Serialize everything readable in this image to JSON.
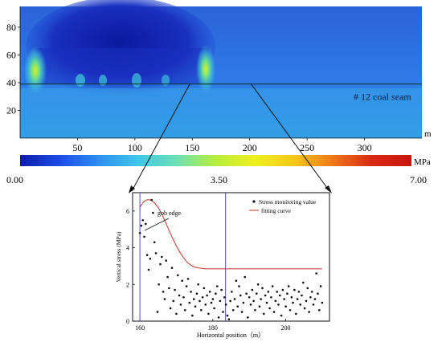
{
  "top_panel": {
    "seam_label": "# 12 coal seam",
    "x_unit": "m",
    "x_ticks": [
      "50",
      "100",
      "150",
      "200",
      "250",
      "300"
    ],
    "y_ticks": [
      "20",
      "40",
      "60",
      "80"
    ],
    "x_range": [
      0,
      350
    ],
    "y_range": [
      0,
      95
    ],
    "seam_elevation": 39
  },
  "colorbar": {
    "unit": "MPa",
    "min_label": "0.00",
    "mid_label": "3.50",
    "max_label": "7.00",
    "colors": [
      "#0a1ea8",
      "#1e4be8",
      "#2d8ef0",
      "#3fc6e8",
      "#6fe0b4",
      "#b4ee3c",
      "#f0f01e",
      "#f5c81a",
      "#f07818",
      "#d82814",
      "#c81410"
    ]
  },
  "chart_data": {
    "type": "scatter",
    "xlabel": "Horizontal position（m）",
    "ylabel": "Vertical stress (MPa)",
    "xlim": [
      158,
      212
    ],
    "ylim": [
      0,
      7
    ],
    "x_ticks": [
      160,
      180,
      200
    ],
    "y_ticks": [
      0,
      2,
      4,
      6
    ],
    "legend_position": "top-right",
    "annotation": "gob edge",
    "reference_lines_x": [
      160,
      183.5
    ],
    "series": [
      {
        "name": "Stress monitoring value",
        "type": "scatter",
        "color": "#111111",
        "points": [
          [
            160,
            4.8
          ],
          [
            160.4,
            5.2
          ],
          [
            160.8,
            5.5
          ],
          [
            161.2,
            4.6
          ],
          [
            161.6,
            5.3
          ],
          [
            162,
            3.6
          ],
          [
            162.4,
            2.8
          ],
          [
            162.8,
            3.4
          ],
          [
            163.2,
            6.6
          ],
          [
            163.6,
            5.9
          ],
          [
            164,
            4.3
          ],
          [
            164.4,
            3.7
          ],
          [
            164.8,
            0.5
          ],
          [
            165.2,
            2.0
          ],
          [
            165.6,
            3.1
          ],
          [
            166,
            3.5
          ],
          [
            166.4,
            1.6
          ],
          [
            166.8,
            1.2
          ],
          [
            167.2,
            3.3
          ],
          [
            167.6,
            2.4
          ],
          [
            168,
            1.8
          ],
          [
            168.4,
            0.7
          ],
          [
            168.8,
            2.9
          ],
          [
            169.2,
            1.1
          ],
          [
            169.6,
            1.7
          ],
          [
            170,
            0.4
          ],
          [
            170.4,
            2.5
          ],
          [
            170.8,
            1.4
          ],
          [
            171.2,
            0.9
          ],
          [
            171.6,
            2.2
          ],
          [
            172,
            1.3
          ],
          [
            172.4,
            0.6
          ],
          [
            172.8,
            1.9
          ],
          [
            173.2,
            2.3
          ],
          [
            173.6,
            1.0
          ],
          [
            174,
            1.6
          ],
          [
            174.4,
            0.3
          ],
          [
            174.8,
            1.2
          ],
          [
            175.2,
            0.8
          ],
          [
            175.6,
            1.5
          ],
          [
            176,
            2.0
          ],
          [
            176.4,
            1.1
          ],
          [
            176.8,
            0.6
          ],
          [
            177.2,
            1.3
          ],
          [
            177.6,
            1.8
          ],
          [
            178,
            0.9
          ],
          [
            178.4,
            1.4
          ],
          [
            178.8,
            0.4
          ],
          [
            179.2,
            1.6
          ],
          [
            179.6,
            1.0
          ],
          [
            180,
            1.2
          ],
          [
            180.4,
            0.7
          ],
          [
            180.8,
            1.5
          ],
          [
            181.2,
            1.9
          ],
          [
            181.6,
            0.2
          ],
          [
            182,
            1.1
          ],
          [
            182.4,
            1.7
          ],
          [
            182.8,
            0.5
          ],
          [
            183.2,
            1.3
          ],
          [
            183.6,
            0.9
          ],
          [
            184,
            0.3
          ],
          [
            184.4,
            0.1
          ],
          [
            184.8,
            1.1
          ],
          [
            185.2,
            1.6
          ],
          [
            185.6,
            0.6
          ],
          [
            186,
            1.2
          ],
          [
            186.4,
            2.2
          ],
          [
            186.8,
            0.8
          ],
          [
            187.2,
            1.9
          ],
          [
            187.6,
            1.4
          ],
          [
            188,
            0.5
          ],
          [
            188.4,
            1.0
          ],
          [
            188.8,
            2.4
          ],
          [
            189.2,
            1.5
          ],
          [
            189.6,
            0.2
          ],
          [
            190,
            1.3
          ],
          [
            190.4,
            0.9
          ],
          [
            190.8,
            1.7
          ],
          [
            191.2,
            1.1
          ],
          [
            191.6,
            0.6
          ],
          [
            192,
            1.5
          ],
          [
            192.4,
            2.0
          ],
          [
            192.8,
            0.8
          ],
          [
            193.2,
            1.2
          ],
          [
            193.6,
            1.8
          ],
          [
            194,
            0.4
          ],
          [
            194.4,
            1.4
          ],
          [
            194.8,
            1.0
          ],
          [
            195.2,
            1.6
          ],
          [
            195.6,
            0.7
          ],
          [
            196,
            1.3
          ],
          [
            196.4,
            1.9
          ],
          [
            196.8,
            0.5
          ],
          [
            197.2,
            1.1
          ],
          [
            197.6,
            1.6
          ],
          [
            198,
            0.9
          ],
          [
            198.4,
            1.4
          ],
          [
            198.8,
            0.3
          ],
          [
            199.2,
            1.7
          ],
          [
            199.6,
            1.2
          ],
          [
            200,
            0.8
          ],
          [
            200.4,
            1.5
          ],
          [
            200.8,
            1.9
          ],
          [
            201.2,
            0.6
          ],
          [
            201.6,
            1.3
          ],
          [
            202,
            1.0
          ],
          [
            202.4,
            1.7
          ],
          [
            202.8,
            0.4
          ],
          [
            203.2,
            1.2
          ],
          [
            203.6,
            1.6
          ],
          [
            204,
            0.9
          ],
          [
            204.4,
            1.4
          ],
          [
            204.8,
            2.1
          ],
          [
            205.2,
            0.7
          ],
          [
            205.6,
            1.1
          ],
          [
            206,
            1.8
          ],
          [
            206.4,
            0.5
          ],
          [
            206.8,
            1.3
          ],
          [
            207.2,
            1.6
          ],
          [
            207.6,
            0.9
          ],
          [
            208,
            1.2
          ],
          [
            208.4,
            2.6
          ],
          [
            208.8,
            1.5
          ],
          [
            209.2,
            0.6
          ],
          [
            209.6,
            1.9
          ],
          [
            210,
            1.0
          ]
        ]
      },
      {
        "name": "fitting curve",
        "type": "line",
        "color": "#c0392b",
        "points": [
          [
            160,
            6.2
          ],
          [
            161,
            6.5
          ],
          [
            162,
            6.62
          ],
          [
            163,
            6.6
          ],
          [
            164,
            6.45
          ],
          [
            165,
            6.2
          ],
          [
            166,
            5.85
          ],
          [
            167,
            5.4
          ],
          [
            168,
            4.95
          ],
          [
            169,
            4.5
          ],
          [
            170,
            4.1
          ],
          [
            171,
            3.75
          ],
          [
            172,
            3.45
          ],
          [
            173,
            3.2
          ],
          [
            174,
            3.05
          ],
          [
            175,
            2.95
          ],
          [
            176,
            2.9
          ],
          [
            178,
            2.85
          ],
          [
            180,
            2.85
          ],
          [
            184,
            2.85
          ],
          [
            190,
            2.85
          ],
          [
            200,
            2.85
          ],
          [
            210,
            2.85
          ]
        ]
      }
    ]
  }
}
